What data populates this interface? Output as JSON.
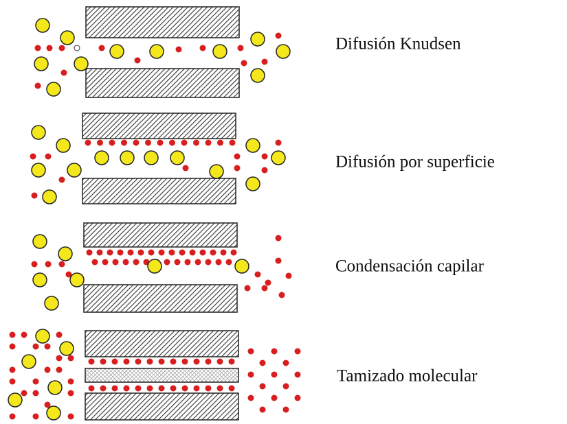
{
  "labels": [
    "Difusión Knudsen",
    "Difusión por superficie",
    "Condensación capilar",
    "Tamizado molecular"
  ]
}
